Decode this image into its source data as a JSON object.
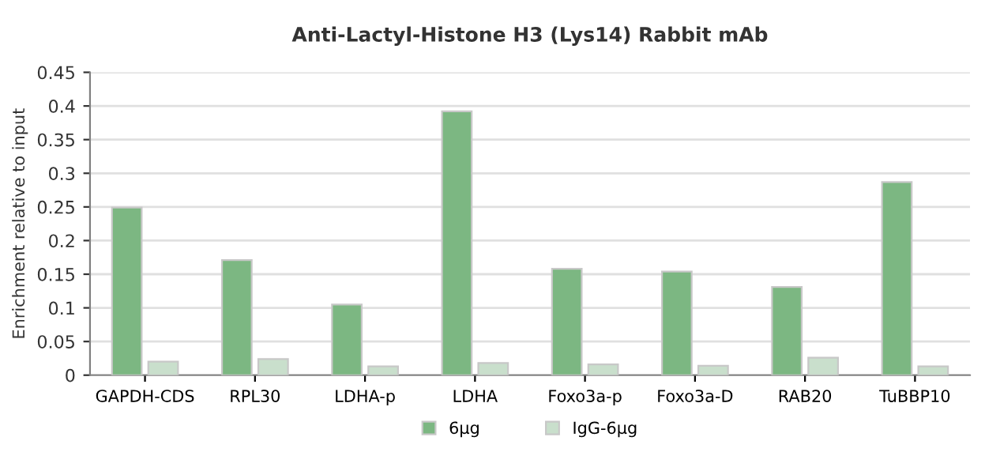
{
  "chart_data": {
    "type": "bar",
    "title": "Anti-Lactyl-Histone H3 (Lys14) Rabbit mAb",
    "ylabel": "Enrichment relative to input",
    "categories": [
      "GAPDH-CDS",
      "RPL30",
      "LDHA-p",
      "LDHA",
      "Foxo3a-p",
      "Foxo3a-D",
      "RAB20",
      "TuBBP10"
    ],
    "series": [
      {
        "name": "6μg",
        "color": "#7cb782",
        "values": [
          0.249,
          0.171,
          0.105,
          0.392,
          0.158,
          0.154,
          0.131,
          0.287
        ]
      },
      {
        "name": "IgG-6μg",
        "color": "#c9dfcc",
        "values": [
          0.02,
          0.024,
          0.013,
          0.018,
          0.016,
          0.014,
          0.026,
          0.013
        ]
      }
    ],
    "ylim": [
      0,
      0.45
    ],
    "yticks": [
      0,
      0.05,
      0.1,
      0.15,
      0.2,
      0.25,
      0.3,
      0.35,
      0.4,
      0.45
    ],
    "grid": "y",
    "legend": "bottom"
  }
}
